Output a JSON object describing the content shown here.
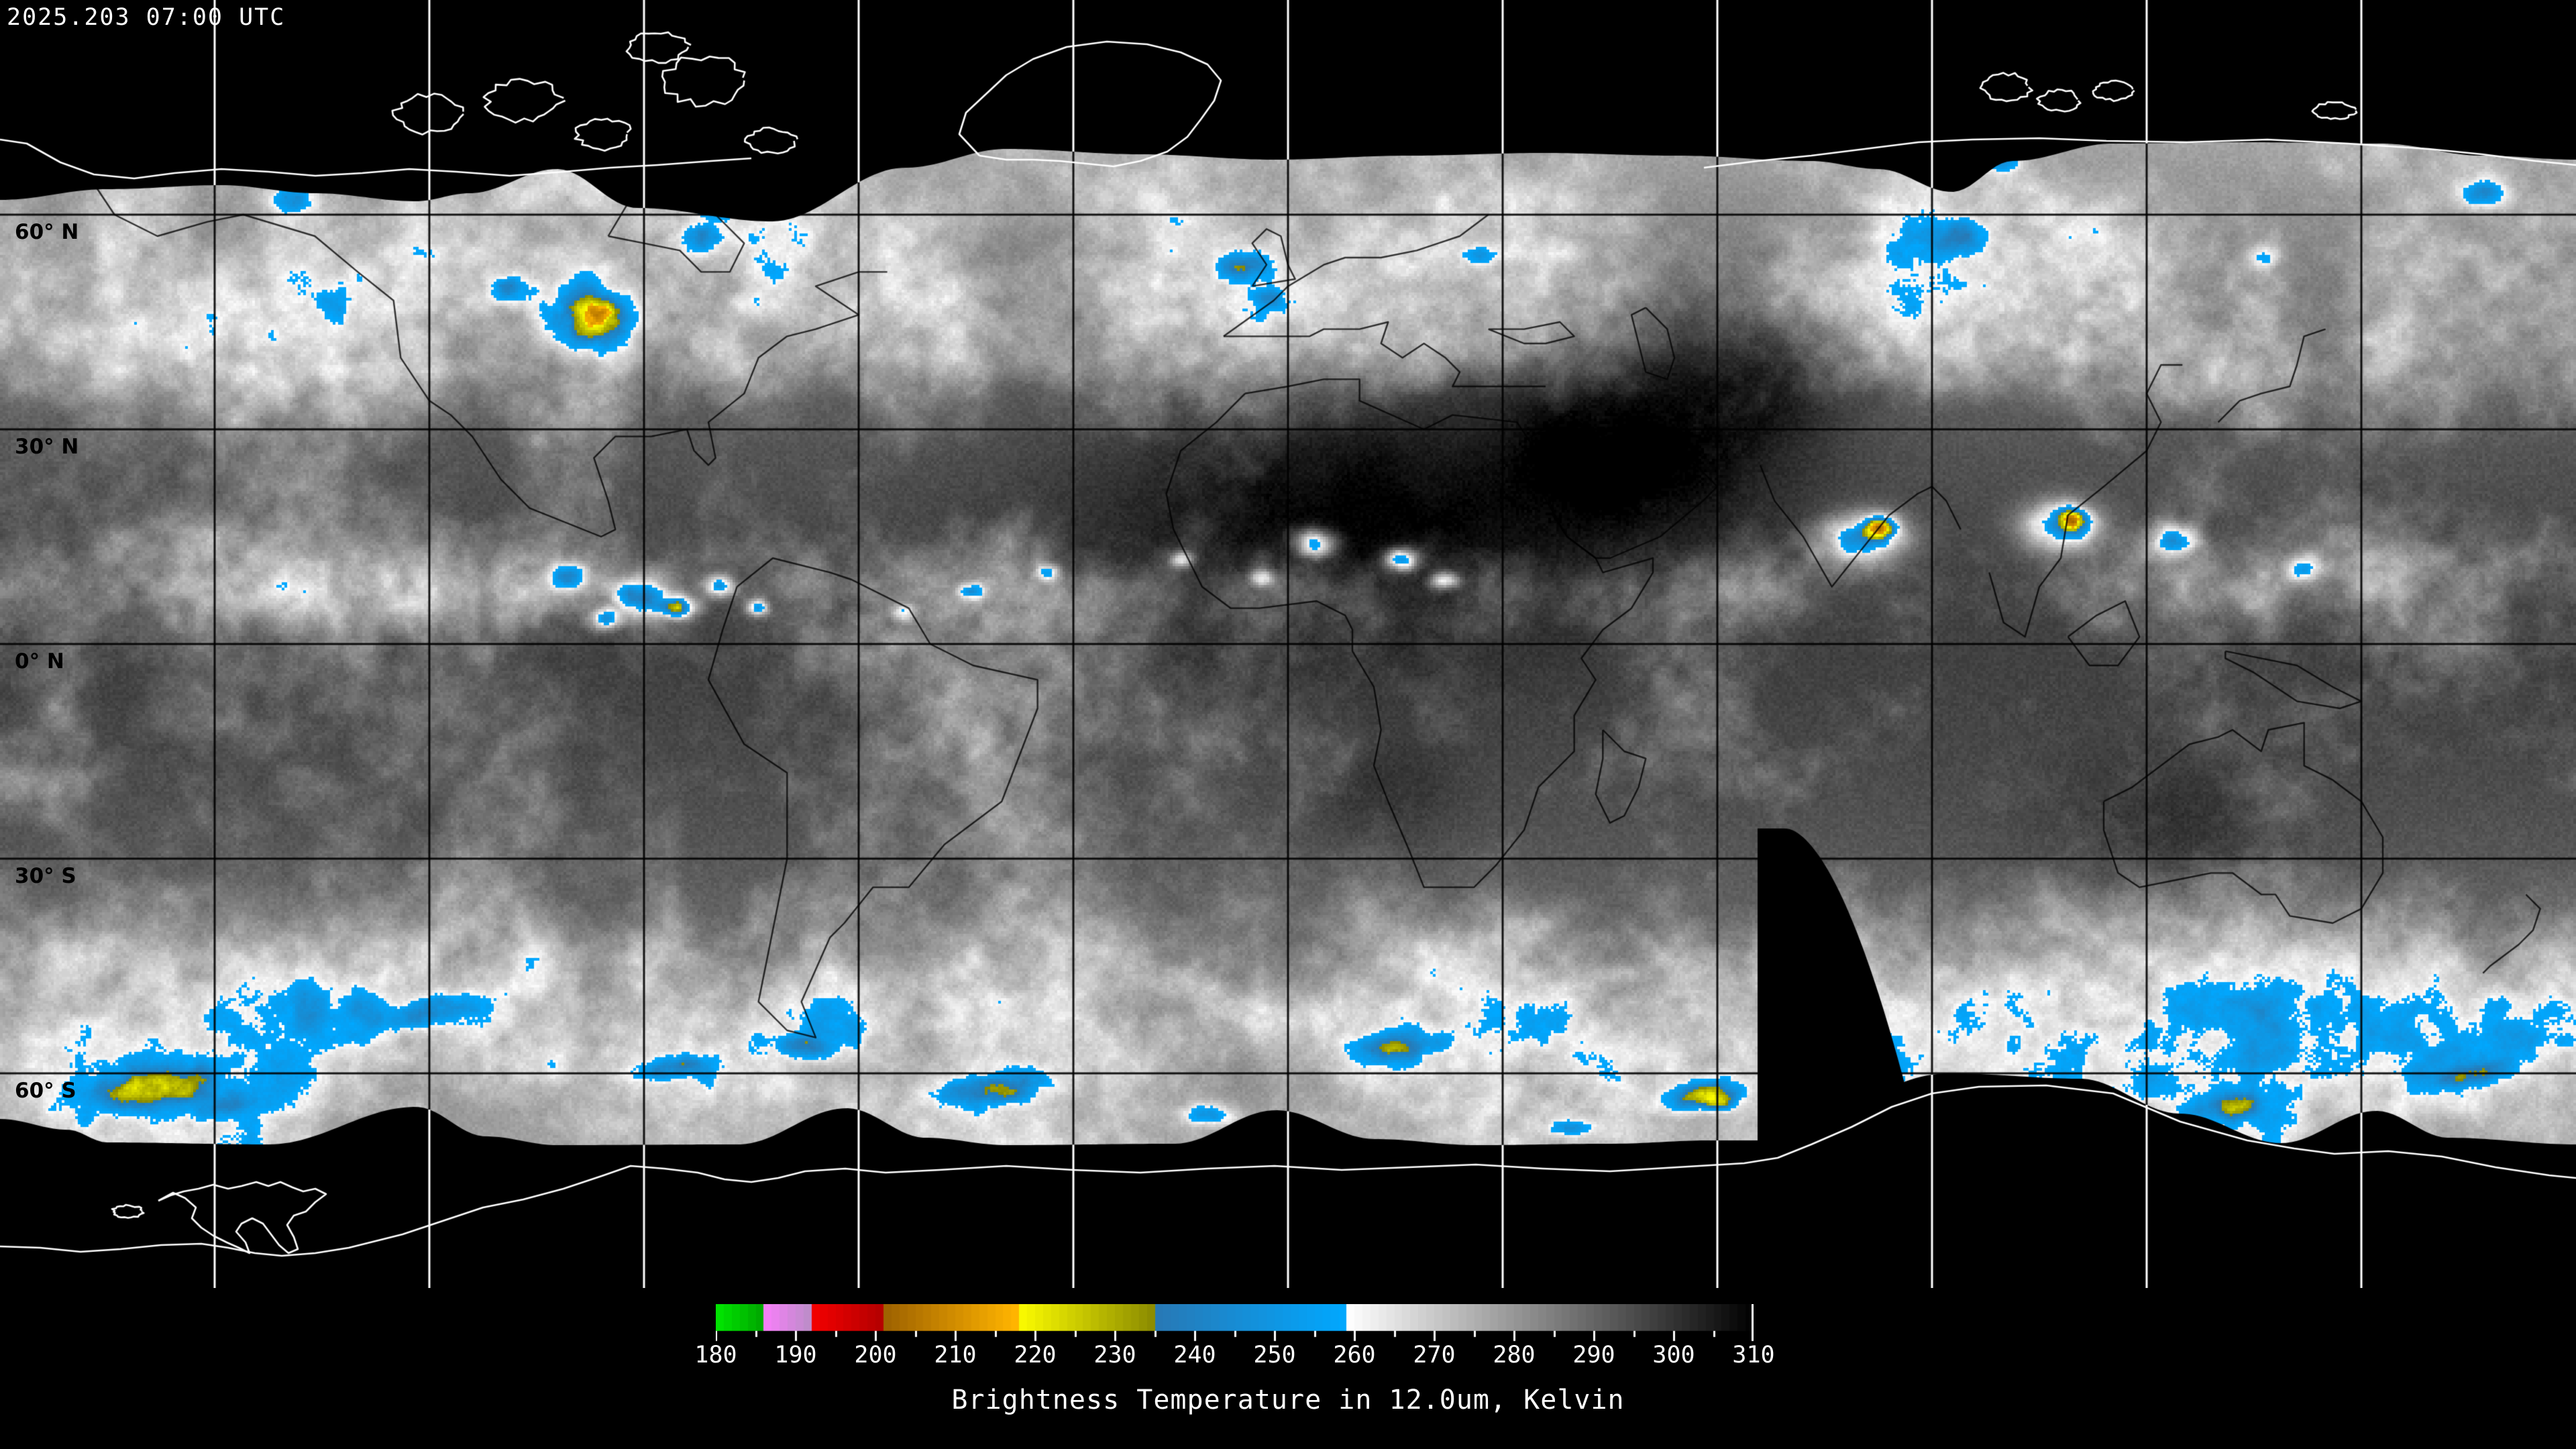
{
  "header": {
    "timestamp": "2025.203 07:00 UTC"
  },
  "map": {
    "projection": "equirectangular-global-composite",
    "grid_interval_degrees": 30,
    "no_data_color": "#000000",
    "latitude_labels": [
      {
        "label": "60° N",
        "latitude": 60
      },
      {
        "label": "30° N",
        "latitude": 30
      },
      {
        "label": "0° N",
        "latitude": 0
      },
      {
        "label": "30° S",
        "latitude": -30
      },
      {
        "label": "60° S",
        "latitude": -60
      }
    ]
  },
  "colorbar": {
    "title": "Brightness Temperature in 12.0um, Kelvin",
    "min_value": 180,
    "max_value": 310,
    "major_tick_interval": 10,
    "minor_tick_interval": 5,
    "tick_labels": [
      "180",
      "190",
      "200",
      "210",
      "220",
      "230",
      "240",
      "250",
      "260",
      "270",
      "280",
      "290",
      "300",
      "310"
    ],
    "segments": [
      {
        "name": "green",
        "from": 180,
        "to": 185.5,
        "color_start": "#00e800",
        "color_end": "#00aa00"
      },
      {
        "name": "pink",
        "from": 185.5,
        "to": 191.5,
        "color_start": "#ff7dff",
        "color_end": "#bf8ccb"
      },
      {
        "name": "red",
        "from": 191.5,
        "to": 201,
        "color_start": "#f80000",
        "color_end": "#b20000"
      },
      {
        "name": "orange",
        "from": 201,
        "to": 217.5,
        "color_start": "#9c6000",
        "color_end": "#ffb400"
      },
      {
        "name": "yellow",
        "from": 217.5,
        "to": 235,
        "color_start": "#ffff00",
        "color_end": "#8a8a00"
      },
      {
        "name": "blue",
        "from": 235,
        "to": 259,
        "color_start": "#2878b4",
        "color_end": "#00a8ff"
      },
      {
        "name": "gray",
        "from": 259,
        "to": 310,
        "color_start": "#ffffff",
        "color_end": "#000000"
      }
    ]
  },
  "chart_data": {
    "type": "heatmap",
    "title": "Brightness Temperature in 12.0um, Kelvin",
    "scale_min": 180,
    "scale_max": 310,
    "tick_labels": [
      "180",
      "190",
      "200",
      "210",
      "220",
      "230",
      "240",
      "250",
      "260",
      "270",
      "280",
      "290",
      "300",
      "310"
    ],
    "legend_position": "bottom",
    "palette_segments": [
      {
        "from": 180,
        "to": 185.5,
        "color_start": "#00e800",
        "color_end": "#00aa00"
      },
      {
        "from": 185.5,
        "to": 191.5,
        "color_start": "#ff7dff",
        "color_end": "#bf8ccb"
      },
      {
        "from": 191.5,
        "to": 201,
        "color_start": "#f80000",
        "color_end": "#b20000"
      },
      {
        "from": 201,
        "to": 217.5,
        "color_start": "#9c6000",
        "color_end": "#ffb400"
      },
      {
        "from": 217.5,
        "to": 235,
        "color_start": "#ffff00",
        "color_end": "#8a8a00"
      },
      {
        "from": 235,
        "to": 259,
        "color_start": "#2878b4",
        "color_end": "#00a8ff"
      },
      {
        "from": 259,
        "to": 310,
        "color_start": "#ffffff",
        "color_end": "#000000"
      }
    ]
  }
}
